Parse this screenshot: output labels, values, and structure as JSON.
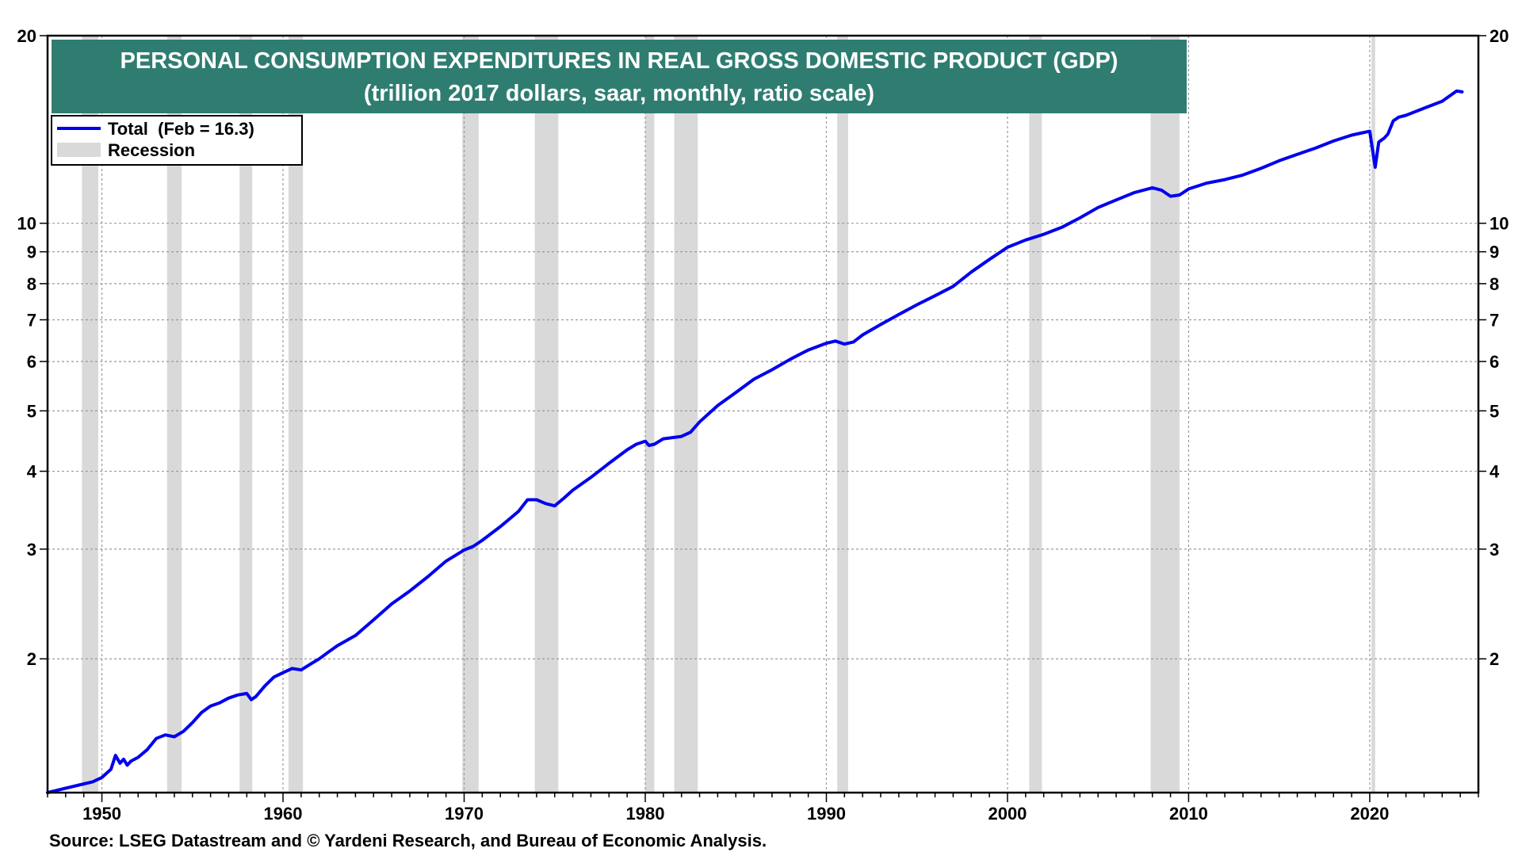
{
  "chart_data": {
    "type": "line",
    "title": "PERSONAL CONSUMPTION EXPENDITURES IN REAL GROSS DOMESTIC PRODUCT (GDP)",
    "subtitle": "(trillion 2017 dollars, saar, monthly, ratio scale)",
    "xlabel": "",
    "ylabel": "",
    "yscale": "log",
    "xlim": [
      1947.0,
      2026.0
    ],
    "ylim": [
      1.22,
      20
    ],
    "x_ticks": [
      1950,
      1960,
      1970,
      1980,
      1990,
      2000,
      2010,
      2020
    ],
    "x_tick_labels": [
      "1950",
      "1960",
      "1970",
      "1980",
      "1990",
      "2000",
      "2010",
      "2020"
    ],
    "y_ticks": [
      2,
      3,
      4,
      5,
      6,
      7,
      8,
      9,
      10,
      20
    ],
    "y_tick_labels": [
      "2",
      "3",
      "4",
      "5",
      "6",
      "7",
      "8",
      "9",
      "10",
      "20"
    ],
    "grid": true,
    "legend_position": "top-left",
    "legend": [
      {
        "label": "Total  (Feb = 16.3)",
        "kind": "line"
      },
      {
        "label": "Recession",
        "kind": "band"
      }
    ],
    "colors": {
      "line": "#0000ee",
      "recession": "#d9d9d9",
      "title_bg": "#2e7d70",
      "title_text": "#ffffff"
    },
    "recessions": [
      [
        1948.9,
        1949.8
      ],
      [
        1953.6,
        1954.4
      ],
      [
        1957.6,
        1958.3
      ],
      [
        1960.3,
        1961.1
      ],
      [
        1969.9,
        1970.8
      ],
      [
        1973.9,
        1975.2
      ],
      [
        1980.0,
        1980.5
      ],
      [
        1981.6,
        1982.9
      ],
      [
        1990.6,
        1991.2
      ],
      [
        2001.2,
        2001.9
      ],
      [
        2007.9,
        2009.5
      ],
      [
        2020.1,
        2020.3
      ]
    ],
    "series": [
      {
        "name": "Total",
        "x": [
          1947.0,
          1948.0,
          1949.0,
          1949.5,
          1950.0,
          1950.5,
          1950.75,
          1951.0,
          1951.2,
          1951.4,
          1951.6,
          1952.0,
          1952.5,
          1953.0,
          1953.5,
          1954.0,
          1954.5,
          1955.0,
          1955.5,
          1956.0,
          1956.5,
          1957.0,
          1957.5,
          1958.0,
          1958.25,
          1958.5,
          1959.0,
          1959.5,
          1960.0,
          1960.5,
          1961.0,
          1961.5,
          1962.0,
          1962.5,
          1963.0,
          1964.0,
          1965.0,
          1966.0,
          1967.0,
          1968.0,
          1969.0,
          1970.0,
          1970.5,
          1971.0,
          1972.0,
          1973.0,
          1973.5,
          1974.0,
          1974.5,
          1975.0,
          1975.5,
          1976.0,
          1977.0,
          1978.0,
          1979.0,
          1979.5,
          1980.0,
          1980.2,
          1980.5,
          1981.0,
          1981.5,
          1982.0,
          1982.5,
          1983.0,
          1984.0,
          1985.0,
          1986.0,
          1987.0,
          1988.0,
          1989.0,
          1990.0,
          1990.5,
          1991.0,
          1991.5,
          1992.0,
          1993.0,
          1994.0,
          1995.0,
          1996.0,
          1997.0,
          1998.0,
          1999.0,
          2000.0,
          2001.0,
          2002.0,
          2003.0,
          2004.0,
          2005.0,
          2006.0,
          2007.0,
          2008.0,
          2008.5,
          2009.0,
          2009.5,
          2010.0,
          2011.0,
          2012.0,
          2013.0,
          2014.0,
          2015.0,
          2016.0,
          2017.0,
          2018.0,
          2019.0,
          2019.5,
          2020.0,
          2020.3,
          2020.5,
          2020.8,
          2021.0,
          2021.3,
          2021.6,
          2022.0,
          2023.0,
          2024.0,
          2024.8,
          2025.1
        ],
        "values": [
          1.22,
          1.24,
          1.26,
          1.27,
          1.29,
          1.33,
          1.4,
          1.36,
          1.38,
          1.35,
          1.37,
          1.39,
          1.43,
          1.49,
          1.51,
          1.5,
          1.53,
          1.58,
          1.64,
          1.68,
          1.7,
          1.73,
          1.75,
          1.76,
          1.72,
          1.74,
          1.81,
          1.87,
          1.9,
          1.93,
          1.92,
          1.96,
          2.0,
          2.05,
          2.1,
          2.18,
          2.31,
          2.45,
          2.57,
          2.71,
          2.87,
          2.99,
          3.03,
          3.1,
          3.26,
          3.45,
          3.6,
          3.6,
          3.55,
          3.52,
          3.62,
          3.73,
          3.91,
          4.12,
          4.33,
          4.42,
          4.47,
          4.4,
          4.42,
          4.51,
          4.53,
          4.55,
          4.62,
          4.8,
          5.1,
          5.35,
          5.62,
          5.82,
          6.05,
          6.26,
          6.42,
          6.47,
          6.4,
          6.45,
          6.62,
          6.88,
          7.14,
          7.4,
          7.65,
          7.92,
          8.35,
          8.75,
          9.15,
          9.4,
          9.6,
          9.85,
          10.2,
          10.6,
          10.9,
          11.2,
          11.4,
          11.3,
          11.05,
          11.1,
          11.35,
          11.6,
          11.75,
          11.95,
          12.25,
          12.6,
          12.9,
          13.2,
          13.55,
          13.85,
          13.95,
          14.05,
          12.3,
          13.5,
          13.7,
          13.9,
          14.6,
          14.8,
          14.9,
          15.3,
          15.7,
          16.3,
          16.25
        ]
      }
    ]
  },
  "footer": {
    "source": "Source: LSEG Datastream and © Yardeni Research, and Bureau of Economic Analysis."
  }
}
